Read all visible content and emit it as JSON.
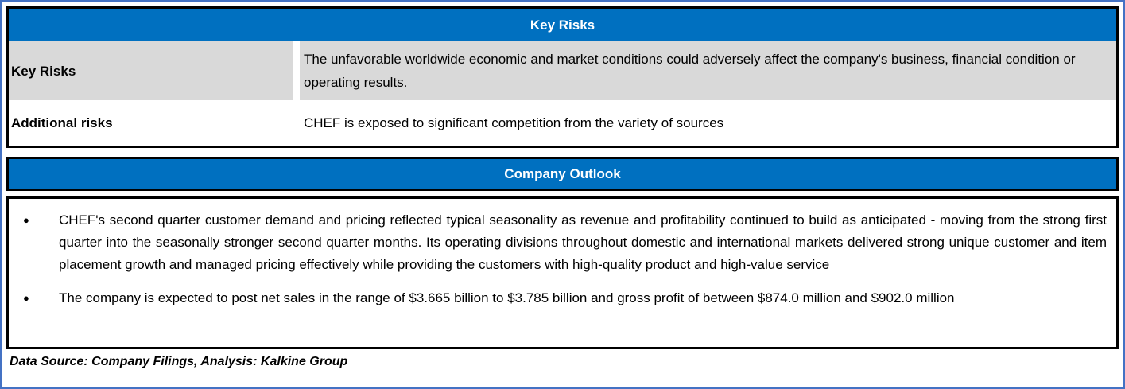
{
  "colors": {
    "header_blue": "#0070C0",
    "outer_border_blue": "#4472C4",
    "row_gray": "#D9D9D9",
    "border_black": "#000000"
  },
  "key_risks_table": {
    "title": "Key Risks",
    "rows": [
      {
        "label": "Key Risks",
        "text": "The unfavorable worldwide economic and market conditions could adversely affect the company's business, financial condition or operating results."
      },
      {
        "label": "Additional risks",
        "text": "CHEF is exposed to significant competition from the variety of sources"
      }
    ]
  },
  "company_outlook": {
    "title": "Company Outlook",
    "bullet_glyph": "●",
    "bullets": [
      "CHEF's second quarter customer demand and pricing reflected typical seasonality as revenue and profitability continued to build as anticipated - moving from the strong first quarter into the seasonally stronger second quarter months. Its operating divisions throughout domestic and international markets delivered strong unique customer and item placement growth and managed pricing effectively while providing the customers with high-quality product and high-value service",
      "The company is expected to post net sales in the range of $3.665 billion to $3.785 billion and gross profit of between $874.0 million and $902.0 million"
    ]
  },
  "footer": {
    "text": "Data Source: Company Filings, Analysis: Kalkine Group"
  }
}
